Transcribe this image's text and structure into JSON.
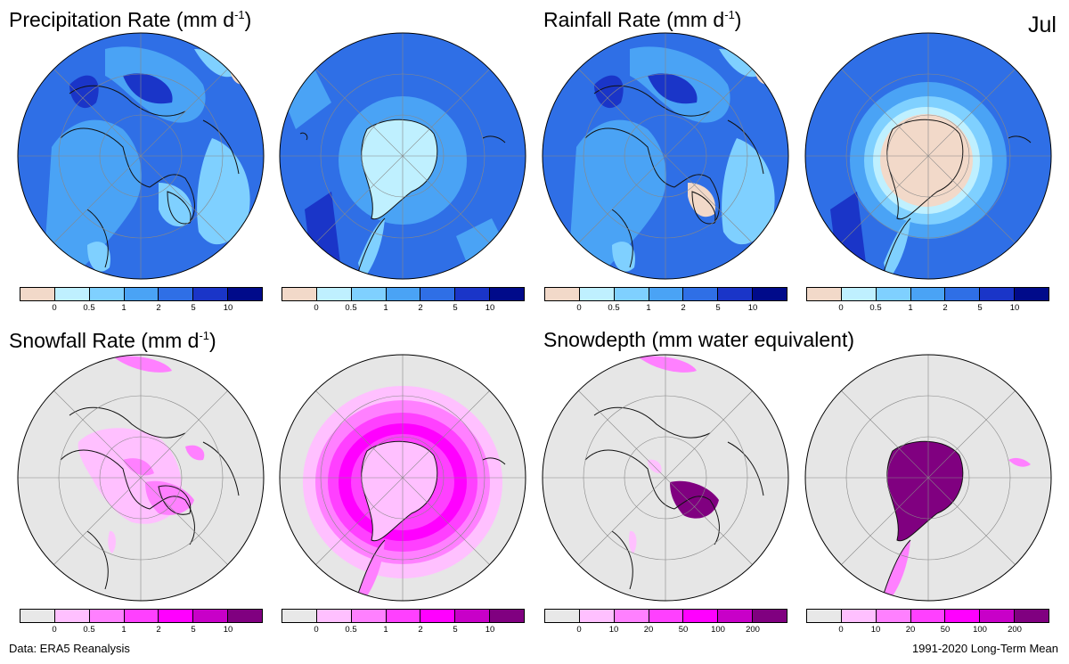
{
  "month": "Jul",
  "titles": {
    "precip": "Precipitation Rate (mm  d",
    "rain": "Rainfall Rate (mm  d",
    "snow": "Snowfall Rate (mm  d",
    "depth": "Snowdepth (mm water equivalent)",
    "exponent": "-1",
    "close": ")"
  },
  "footer": {
    "left": "Data: ERA5 Reanalysis",
    "right": "1991-2020 Long-Term Mean"
  },
  "colors": {
    "blue": [
      "#f2d9c9",
      "#bff0ff",
      "#7fd0ff",
      "#4aa3f5",
      "#2f6fe6",
      "#1a35c8",
      "#000a8a"
    ],
    "pink": [
      "#e8e8e8",
      "#ffc0ff",
      "#ff80ff",
      "#ff40ff",
      "#ff00ff",
      "#c800c8",
      "#800080"
    ],
    "ocean_blue": "#2f6fe6",
    "ocean_grey": "#e6e6e6"
  },
  "colorbars": {
    "rate_ticks": [
      "0",
      "0.5",
      "1",
      "2",
      "5",
      "10"
    ],
    "depth_ticks": [
      "0",
      "10",
      "20",
      "50",
      "100",
      "200"
    ]
  },
  "maps": [
    {
      "name": "precip-north-map",
      "hemisphere": "north"
    },
    {
      "name": "precip-south-map",
      "hemisphere": "south"
    },
    {
      "name": "rain-north-map",
      "hemisphere": "north"
    },
    {
      "name": "rain-south-map",
      "hemisphere": "south"
    },
    {
      "name": "snow-north-map",
      "hemisphere": "north"
    },
    {
      "name": "snow-south-map",
      "hemisphere": "south"
    },
    {
      "name": "depth-north-map",
      "hemisphere": "north"
    },
    {
      "name": "depth-south-map",
      "hemisphere": "south"
    }
  ]
}
